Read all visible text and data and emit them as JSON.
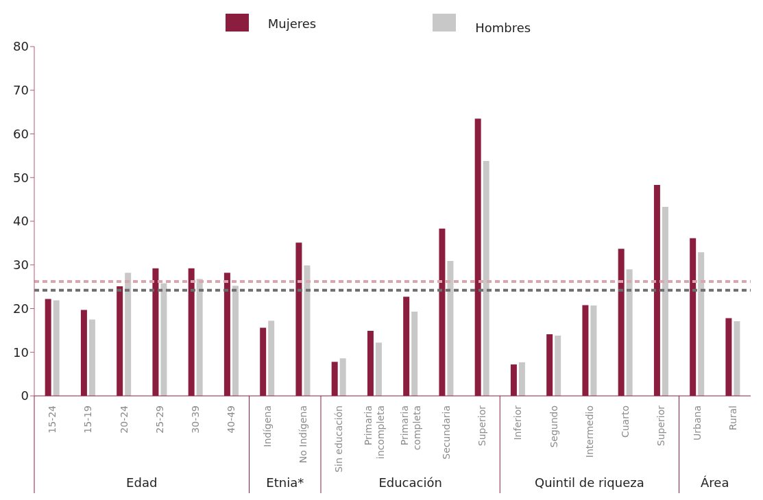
{
  "chart_data": {
    "type": "bar",
    "categories": [
      "15-24",
      "15-19",
      "20-24",
      "25-29",
      "30-39",
      "40-49",
      "Indígena",
      "No Indígena",
      "Sin educación",
      "Primaria incompleta",
      "Primaria completa",
      "Secundaria",
      "Superior",
      "Inferior",
      "Segundo",
      "Intermedio",
      "Cuarto",
      "Superior",
      "Urbana",
      "Rural"
    ],
    "series": [
      {
        "name": "Mujeres",
        "color": "#8b1e3f",
        "values": [
          22.2,
          19.7,
          25.1,
          29.2,
          29.2,
          28.2,
          15.6,
          35.1,
          7.8,
          14.9,
          22.7,
          38.3,
          63.5,
          7.2,
          14.1,
          20.8,
          33.7,
          48.3,
          36.1,
          17.8
        ]
      },
      {
        "name": "Hombres",
        "color": "#c8c8c8",
        "values": [
          21.9,
          17.5,
          28.2,
          25.8,
          26.8,
          25.2,
          17.2,
          29.9,
          8.6,
          12.2,
          19.3,
          30.9,
          53.8,
          7.7,
          13.8,
          20.7,
          29.0,
          43.3,
          32.9,
          17.1
        ]
      }
    ],
    "ylim": [
      0,
      80
    ],
    "yticks": [
      0,
      10,
      20,
      30,
      40,
      50,
      60,
      70,
      80
    ],
    "ref_lines": [
      {
        "axis": "y",
        "value": 26.2,
        "color": "#dba5ad",
        "line_style": "dashed"
      },
      {
        "axis": "y",
        "value": 24.2,
        "color": "#6e6e6e",
        "line_style": "dashed"
      }
    ],
    "annotations": [
      "Edad",
      "Etnia*",
      "Educación",
      "Quintil de riqueza",
      "Área"
    ],
    "grid": false,
    "legend": "top"
  }
}
